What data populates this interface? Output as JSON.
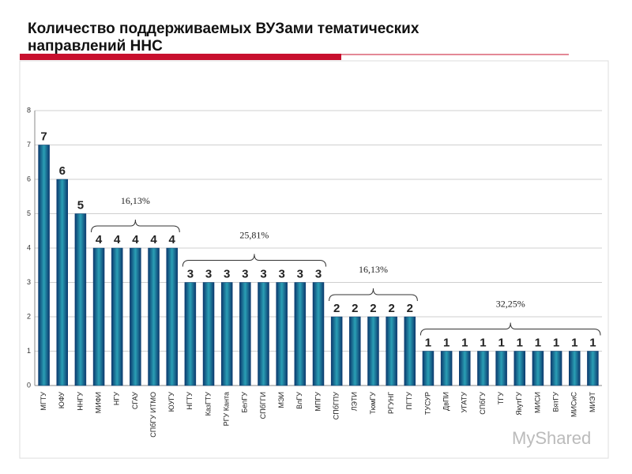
{
  "chart_data": {
    "type": "bar",
    "title": [
      "Количество поддерживаемых ВУЗами тематических",
      "направлений ННС"
    ],
    "categories": [
      "МГТУ",
      "ЮФУ",
      "ННГУ",
      "МИФИ",
      "НГУ",
      "СГАУ",
      "СПбГУ ИТМО",
      "ЮУГУ",
      "НГТУ",
      "КазГТУ",
      "РГУ Канта",
      "БелГУ",
      "СПбГГИ",
      "МЭИ",
      "ВлГУ",
      "МПГУ",
      "СПбГПУ",
      "ЛЭТИ",
      "ТюмГУ",
      "РГУНГ",
      "ПГТУ",
      "ТУСУР",
      "ДвПИ",
      "УГАТУ",
      "СПбГУ",
      "ТГУ",
      "ЯкутГУ",
      "МИСИ",
      "ВятГУ",
      "МИСиС",
      "МИЭТ"
    ],
    "values": [
      7,
      6,
      5,
      4,
      4,
      4,
      4,
      4,
      3,
      3,
      3,
      3,
      3,
      3,
      3,
      3,
      2,
      2,
      2,
      2,
      2,
      1,
      1,
      1,
      1,
      1,
      1,
      1,
      1,
      1,
      1
    ],
    "ylim": [
      0,
      8
    ],
    "yticks": [
      0,
      1,
      2,
      3,
      4,
      5,
      6,
      7,
      8
    ],
    "grid": true,
    "annotations": [
      "16,13%",
      "25,81%",
      "16,13%",
      "32,25%"
    ]
  },
  "watermark": "MyShared"
}
